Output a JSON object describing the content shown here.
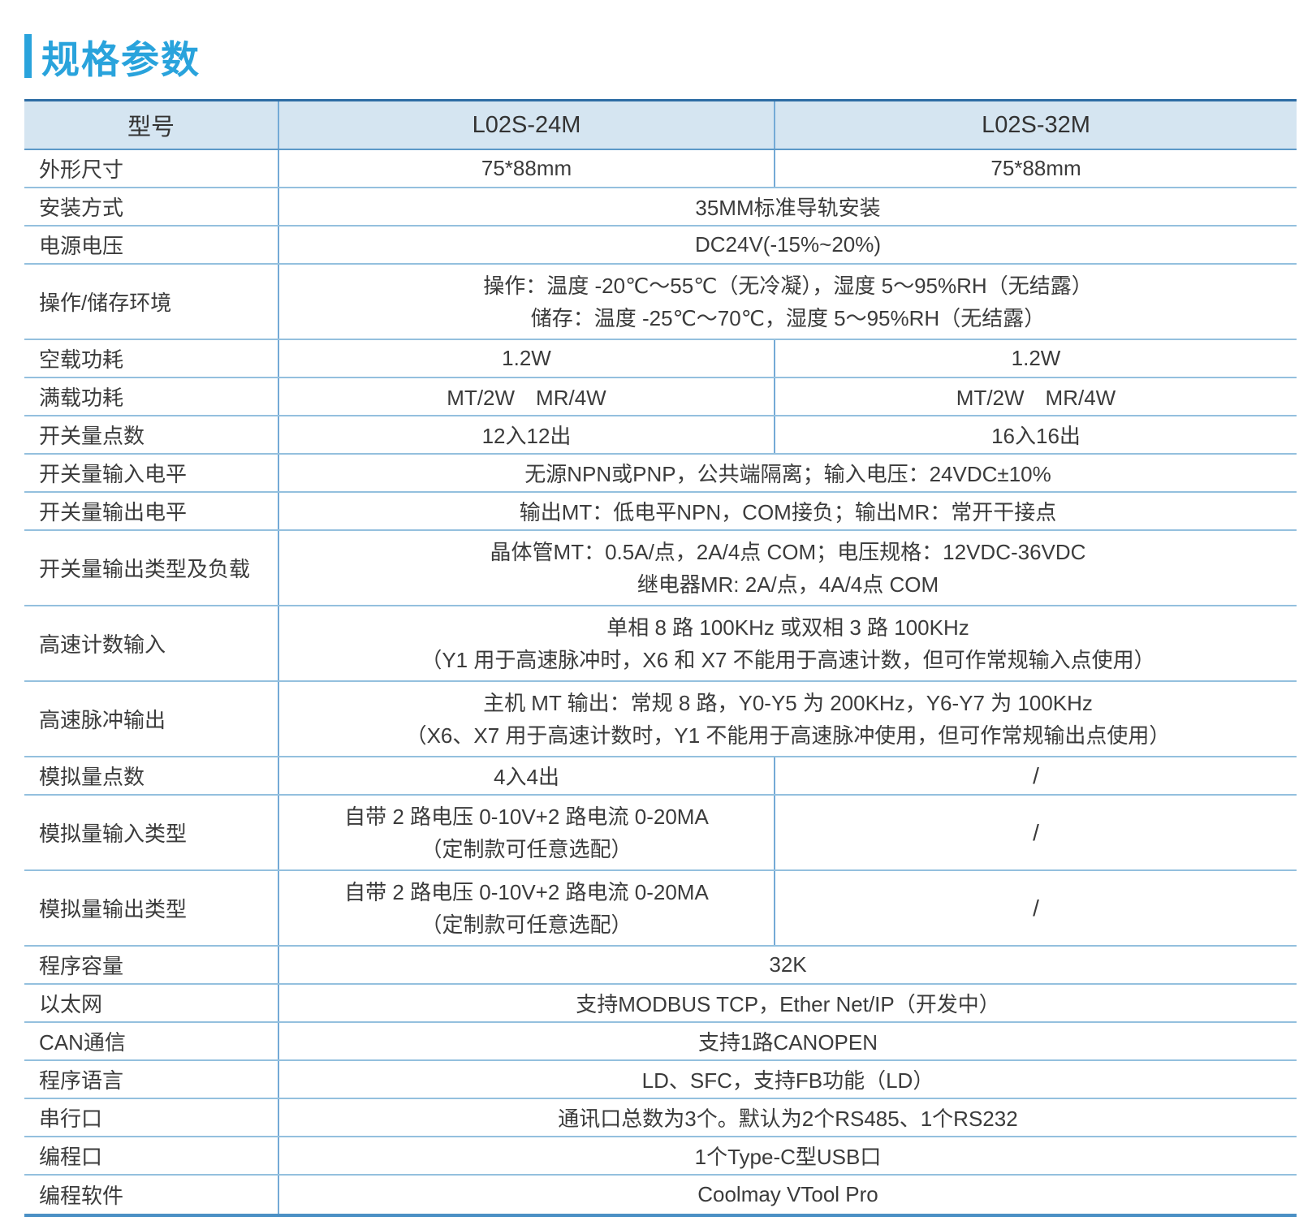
{
  "title": "规格参数",
  "table": {
    "header": {
      "model_label": "型号",
      "model_a": "L02S-24M",
      "model_b": "L02S-32M"
    },
    "rows": [
      {
        "label": "外形尺寸",
        "a": "75*88mm",
        "b": "75*88mm"
      },
      {
        "label": "安装方式",
        "value": "35MM标准导轨安装"
      },
      {
        "label": "电源电压",
        "value": "DC24V(-15%~20%)"
      },
      {
        "label": "操作/储存环境",
        "line1": "操作：温度 -20℃～55℃（无冷凝），湿度 5～95%RH（无结露）",
        "line2": "储存：温度 -25℃～70℃，湿度 5～95%RH（无结露）"
      },
      {
        "label": "空载功耗",
        "a": "1.2W",
        "b": "1.2W"
      },
      {
        "label": "满载功耗",
        "a": "MT/2W　MR/4W",
        "b": "MT/2W　MR/4W"
      },
      {
        "label": "开关量点数",
        "a": "12入12出",
        "b": "16入16出"
      },
      {
        "label": "开关量输入电平",
        "value": "无源NPN或PNP，公共端隔离；输入电压：24VDC±10%"
      },
      {
        "label": "开关量输出电平",
        "value": "输出MT：低电平NPN，COM接负；输出MR：常开干接点"
      },
      {
        "label": "开关量输出类型及负载",
        "line1": "晶体管MT：0.5A/点，2A/4点 COM；电压规格：12VDC-36VDC",
        "line2": "继电器MR: 2A/点，4A/4点 COM"
      },
      {
        "label": "高速计数输入",
        "line1": "单相 8 路 100KHz 或双相 3 路 100KHz",
        "line2": "（Y1 用于高速脉冲时，X6 和 X7 不能用于高速计数，但可作常规输入点使用）"
      },
      {
        "label": "高速脉冲输出",
        "line1": "主机 MT 输出：常规 8 路，Y0-Y5 为 200KHz，Y6-Y7 为 100KHz",
        "line2": "（X6、X7 用于高速计数时，Y1 不能用于高速脉冲使用，但可作常规输出点使用）"
      },
      {
        "label": "模拟量点数",
        "a": "4入4出",
        "b": "/"
      },
      {
        "label": "模拟量输入类型",
        "a_line1": "自带 2 路电压 0-10V+2 路电流 0-20MA",
        "a_line2": "（定制款可任意选配）",
        "b": "/"
      },
      {
        "label": "模拟量输出类型",
        "a_line1": "自带 2 路电压 0-10V+2 路电流 0-20MA",
        "a_line2": "（定制款可任意选配）",
        "b": "/"
      },
      {
        "label": "程序容量",
        "value": "32K"
      },
      {
        "label": "以太网",
        "value": "支持MODBUS TCP，Ether Net/IP（开发中）"
      },
      {
        "label": "CAN通信",
        "value": "支持1路CANOPEN"
      },
      {
        "label": "程序语言",
        "value": "LD、SFC，支持FB功能（LD）"
      },
      {
        "label": "串行口",
        "value": "通讯口总数为3个。默认为2个RS485、1个RS232"
      },
      {
        "label": "编程口",
        "value": "1个Type-C型USB口"
      },
      {
        "label": "编程软件",
        "value": "Coolmay VTool Pro"
      }
    ]
  },
  "colors": {
    "accent_blue": "#29a3dc",
    "header_bg": "#d5e5f1",
    "border_top": "#2e6da4",
    "border_bottom": "#4b90c5",
    "row_line": "#94c0de",
    "column_line": "#74aad6",
    "text": "#3b3b3b"
  }
}
